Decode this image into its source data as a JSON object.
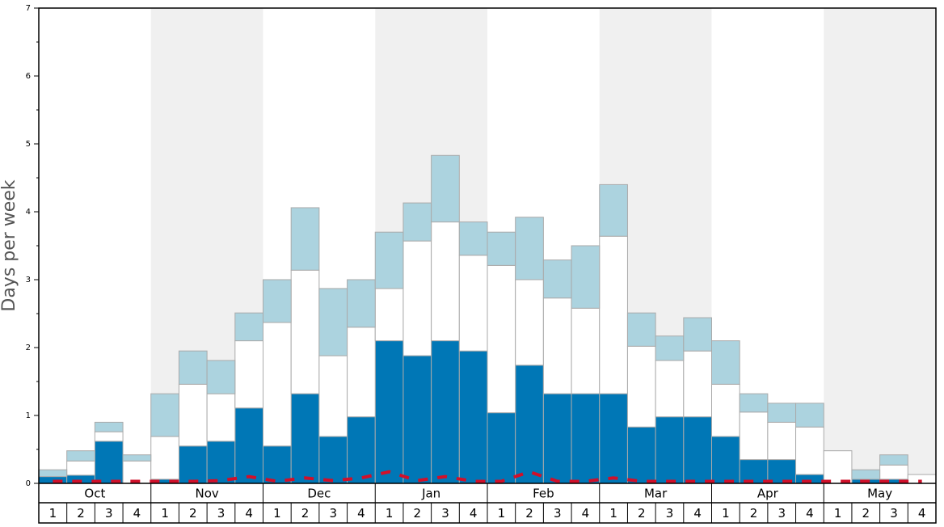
{
  "chart_data": {
    "type": "bar",
    "stacked": true,
    "ylabel": "Days per week",
    "months": [
      "Oct",
      "Nov",
      "Dec",
      "Jan",
      "Feb",
      "Mar",
      "Apr",
      "May"
    ],
    "categories": [
      "1",
      "2",
      "3",
      "4",
      "1",
      "2",
      "3",
      "4",
      "1",
      "2",
      "3",
      "4",
      "1",
      "2",
      "3",
      "4",
      "1",
      "2",
      "3",
      "4",
      "1",
      "2",
      "3",
      "4",
      "1",
      "2",
      "3",
      "4",
      "1",
      "2",
      "3",
      "4"
    ],
    "ylim": [
      0,
      7
    ],
    "yticks": [
      0,
      1,
      2,
      3,
      4,
      5,
      6,
      7
    ],
    "yminorticks": [
      0.5,
      1.5,
      2.5,
      3.5,
      4.5,
      5.5,
      6.5
    ],
    "band_color": "#f0f0f0",
    "series": [
      {
        "color": "#0077b6",
        "values": [
          0.1,
          0.12,
          0.62,
          0,
          0.06,
          0.55,
          0.62,
          1.11,
          0.55,
          1.32,
          0.69,
          0.98,
          2.1,
          1.88,
          2.1,
          1.95,
          1.04,
          1.74,
          1.32,
          1.32,
          1.32,
          0.83,
          0.98,
          0.98,
          0.69,
          0.35,
          0.35,
          0.13,
          0,
          0.06,
          0.06,
          0
        ]
      },
      {
        "color": "#ffffff",
        "values": [
          0,
          0.21,
          0.14,
          0.33,
          0.63,
          0.91,
          0.7,
          0.99,
          1.82,
          1.82,
          1.19,
          1.32,
          0.77,
          1.69,
          1.75,
          1.41,
          2.17,
          1.26,
          1.41,
          1.26,
          2.32,
          1.19,
          0.83,
          0.97,
          0.77,
          0.7,
          0.55,
          0.7,
          0.48,
          0,
          0.21,
          0.13
        ]
      },
      {
        "color": "#acd3df",
        "values": [
          0.1,
          0.15,
          0.14,
          0.09,
          0.63,
          0.49,
          0.49,
          0.41,
          0.63,
          0.92,
          0.99,
          0.7,
          0.83,
          0.56,
          0.98,
          0.49,
          0.49,
          0.92,
          0.56,
          0.92,
          0.76,
          0.49,
          0.36,
          0.49,
          0.64,
          0.27,
          0.28,
          0.35,
          0,
          0.14,
          0.15,
          0
        ]
      },
      {
        "type": "line",
        "dashed": true,
        "color": "#d0102a",
        "values": [
          0.03,
          0.03,
          0.03,
          0.03,
          0.03,
          0.03,
          0.04,
          0.1,
          0.03,
          0.08,
          0.04,
          0.08,
          0.17,
          0.04,
          0.1,
          0.03,
          0.03,
          0.17,
          0.03,
          0.03,
          0.08,
          0.03,
          0.03,
          0.03,
          0.03,
          0.03,
          0.03,
          0.03,
          0.03,
          0.03,
          0.03,
          0.03
        ]
      }
    ]
  }
}
